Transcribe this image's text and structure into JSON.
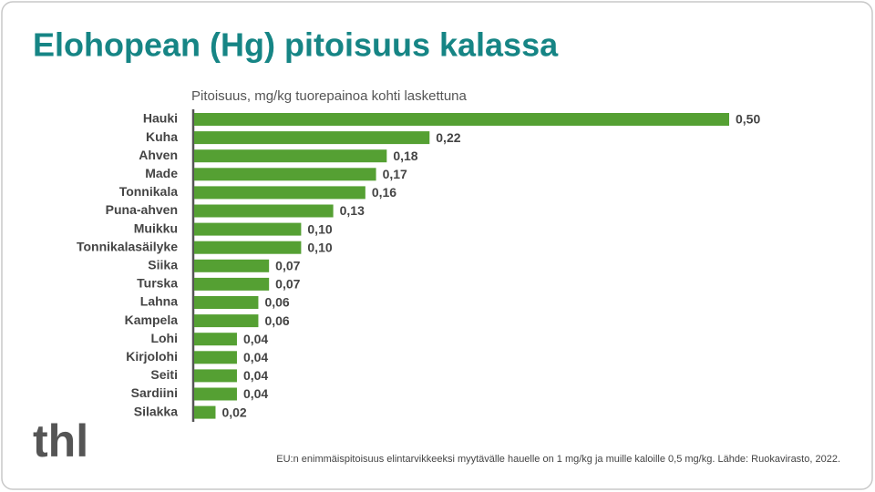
{
  "chart_data": {
    "type": "bar",
    "orientation": "horizontal",
    "title": "Elohopean (Hg) pitoisuus kalassa",
    "subtitle": "Pitoisuus, mg/kg tuorepainoa kohti laskettuna",
    "categories": [
      "Hauki",
      "Kuha",
      "Ahven",
      "Made",
      "Tonnikala",
      "Puna-ahven",
      "Muikku",
      "Tonnikalasäilyke",
      "Siika",
      "Turska",
      "Lahna",
      "Kampela",
      "Lohi",
      "Kirjolohi",
      "Seiti",
      "Sardiini",
      "Silakka"
    ],
    "values": [
      0.5,
      0.22,
      0.18,
      0.17,
      0.16,
      0.13,
      0.1,
      0.1,
      0.07,
      0.07,
      0.06,
      0.06,
      0.04,
      0.04,
      0.04,
      0.04,
      0.02
    ],
    "value_labels": [
      "0,50",
      "0,22",
      "0,18",
      "0,17",
      "0,16",
      "0,13",
      "0,10",
      "0,10",
      "0,07",
      "0,07",
      "0,06",
      "0,06",
      "0,04",
      "0,04",
      "0,04",
      "0,04",
      "0,02"
    ],
    "color": "#55a033",
    "footnote": "EU:n enimmäispitoisuus  elintarvikkeeksi  myytävälle hauelle on 1 mg/kg ja muille kaloille 0,5 mg/kg. Lähde: Ruokavirasto,  2022.",
    "logo": "thl"
  }
}
